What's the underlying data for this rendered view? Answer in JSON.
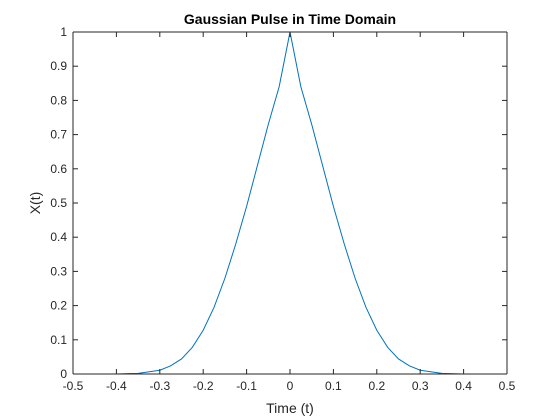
{
  "chart_data": {
    "type": "line",
    "title": "Gaussian Pulse in Time Domain",
    "xlabel": "Time (t)",
    "ylabel": "X(t)",
    "xlim": [
      -0.5,
      0.5
    ],
    "ylim": [
      0,
      1
    ],
    "xticks": [
      -0.5,
      -0.4,
      -0.3,
      -0.2,
      -0.1,
      0,
      0.1,
      0.2,
      0.3,
      0.4,
      0.5
    ],
    "xtick_labels": [
      "-0.5",
      "-0.4",
      "-0.3",
      "-0.2",
      "-0.1",
      "0",
      "0.1",
      "0.2",
      "0.3",
      "0.4",
      "0.5"
    ],
    "yticks": [
      0,
      0.1,
      0.2,
      0.3,
      0.4,
      0.5,
      0.6,
      0.7,
      0.8,
      0.9,
      1
    ],
    "ytick_labels": [
      "0",
      "0.1",
      "0.2",
      "0.3",
      "0.4",
      "0.5",
      "0.6",
      "0.7",
      "0.8",
      "0.9",
      "1"
    ],
    "grid": false,
    "box": true,
    "series": [
      {
        "color": "#0072BD",
        "x": [
          -0.5,
          -0.45,
          -0.4,
          -0.35,
          -0.3,
          -0.275,
          -0.25,
          -0.225,
          -0.2,
          -0.175,
          -0.15,
          -0.125,
          -0.1,
          -0.075,
          -0.05,
          -0.025,
          0,
          0.025,
          0.05,
          0.075,
          0.1,
          0.125,
          0.15,
          0.175,
          0.2,
          0.225,
          0.25,
          0.275,
          0.3,
          0.35,
          0.4,
          0.45,
          0.5
        ],
        "y": [
          0.0,
          0.0,
          0.0,
          0.002,
          0.011,
          0.024,
          0.044,
          0.078,
          0.128,
          0.195,
          0.28,
          0.38,
          0.49,
          0.61,
          0.73,
          0.84,
          1.0,
          0.84,
          0.73,
          0.61,
          0.49,
          0.38,
          0.28,
          0.195,
          0.128,
          0.078,
          0.044,
          0.024,
          0.011,
          0.002,
          0.0,
          0.0,
          0.0
        ]
      }
    ]
  }
}
